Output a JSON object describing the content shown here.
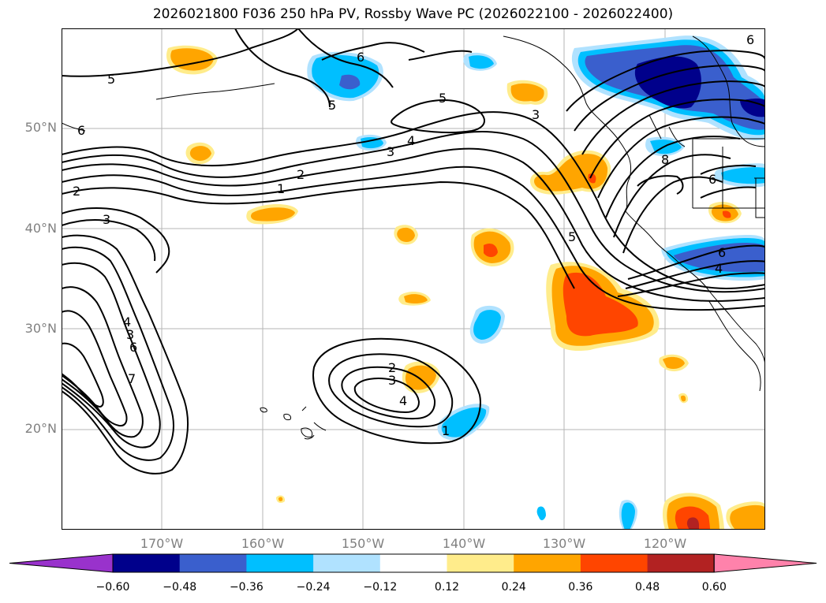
{
  "title": "2026021800 F036 250 hPa PV, Rossby Wave PC (2026022100 - 2026022400)",
  "lat_labels": [
    "50°N",
    "40°N",
    "30°N",
    "20°N"
  ],
  "lon_labels": [
    "170°W",
    "160°W",
    "150°W",
    "140°W",
    "130°W",
    "120°W"
  ],
  "colorbar": {
    "ticks": [
      "−0.60",
      "−0.48",
      "−0.36",
      "−0.24",
      "−0.12",
      "0.12",
      "0.24",
      "0.36",
      "0.48",
      "0.60"
    ],
    "colors": [
      "#9932cc",
      "#00008b",
      "#3a5fcd",
      "#00bfff",
      "#b0e2ff",
      "#ffffff",
      "#ffec8b",
      "#ffa500",
      "#ff4500",
      "#b22222",
      "#ff82ab"
    ]
  },
  "contour_labels": [
    "5",
    "6",
    "5",
    "5",
    "3",
    "4",
    "3",
    "2",
    "1",
    "2",
    "3",
    "6",
    "6",
    "8",
    "6",
    "5",
    "6",
    "4",
    "4",
    "3",
    "6",
    "2",
    "3",
    "4",
    "1",
    "7"
  ]
}
